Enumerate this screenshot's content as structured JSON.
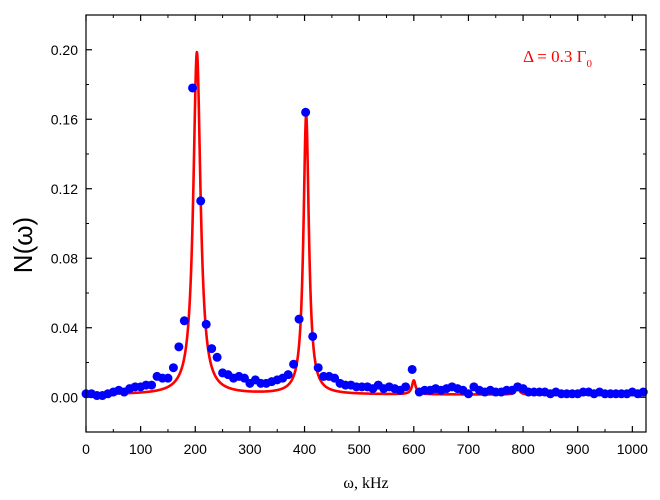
{
  "chart_data": {
    "type": "scatter",
    "xlabel": "ω, kHz",
    "ylabel": "N(ω)",
    "xlim": [
      0,
      1025
    ],
    "ylim": [
      -0.02,
      0.22
    ],
    "x_ticks": [
      0,
      100,
      200,
      300,
      400,
      500,
      600,
      700,
      800,
      900,
      1000
    ],
    "y_ticks": [
      0.0,
      0.04,
      0.08,
      0.12,
      0.16,
      0.2
    ],
    "y_tick_labels": [
      "0.00",
      "0.04",
      "0.08",
      "0.12",
      "0.16",
      "0.20"
    ],
    "grid": false,
    "annotation": {
      "text": "Δ = 0.3 Γ",
      "subscript": "0",
      "color": "#ff0000",
      "x": 800,
      "y": 0.193
    },
    "series": [
      {
        "type": "scatter",
        "color": "#0000ff",
        "points": [
          [
            0,
            0.002
          ],
          [
            10,
            0.002
          ],
          [
            20,
            0.001
          ],
          [
            30,
            0.001
          ],
          [
            40,
            0.002
          ],
          [
            50,
            0.003
          ],
          [
            60,
            0.004
          ],
          [
            70,
            0.003
          ],
          [
            80,
            0.005
          ],
          [
            90,
            0.006
          ],
          [
            100,
            0.006
          ],
          [
            110,
            0.007
          ],
          [
            120,
            0.007
          ],
          [
            130,
            0.012
          ],
          [
            140,
            0.011
          ],
          [
            150,
            0.011
          ],
          [
            160,
            0.017
          ],
          [
            170,
            0.029
          ],
          [
            180,
            0.044
          ],
          [
            195,
            0.178
          ],
          [
            210,
            0.113
          ],
          [
            220,
            0.042
          ],
          [
            230,
            0.028
          ],
          [
            240,
            0.023
          ],
          [
            250,
            0.014
          ],
          [
            260,
            0.013
          ],
          [
            270,
            0.011
          ],
          [
            280,
            0.012
          ],
          [
            290,
            0.011
          ],
          [
            300,
            0.008
          ],
          [
            310,
            0.01
          ],
          [
            320,
            0.008
          ],
          [
            330,
            0.008
          ],
          [
            340,
            0.009
          ],
          [
            350,
            0.01
          ],
          [
            360,
            0.011
          ],
          [
            370,
            0.013
          ],
          [
            380,
            0.019
          ],
          [
            390,
            0.045
          ],
          [
            402,
            0.164
          ],
          [
            415,
            0.035
          ],
          [
            425,
            0.017
          ],
          [
            435,
            0.012
          ],
          [
            445,
            0.012
          ],
          [
            455,
            0.011
          ],
          [
            465,
            0.008
          ],
          [
            475,
            0.007
          ],
          [
            485,
            0.007
          ],
          [
            495,
            0.006
          ],
          [
            505,
            0.006
          ],
          [
            515,
            0.006
          ],
          [
            525,
            0.005
          ],
          [
            535,
            0.007
          ],
          [
            545,
            0.005
          ],
          [
            555,
            0.006
          ],
          [
            565,
            0.005
          ],
          [
            575,
            0.004
          ],
          [
            585,
            0.006
          ],
          [
            597,
            0.016
          ],
          [
            610,
            0.003
          ],
          [
            620,
            0.004
          ],
          [
            630,
            0.004
          ],
          [
            640,
            0.005
          ],
          [
            650,
            0.004
          ],
          [
            660,
            0.005
          ],
          [
            670,
            0.006
          ],
          [
            680,
            0.005
          ],
          [
            690,
            0.004
          ],
          [
            700,
            0.002
          ],
          [
            710,
            0.006
          ],
          [
            720,
            0.004
          ],
          [
            730,
            0.003
          ],
          [
            740,
            0.004
          ],
          [
            750,
            0.003
          ],
          [
            760,
            0.003
          ],
          [
            770,
            0.004
          ],
          [
            780,
            0.004
          ],
          [
            790,
            0.006
          ],
          [
            800,
            0.005
          ],
          [
            810,
            0.003
          ],
          [
            820,
            0.003
          ],
          [
            830,
            0.003
          ],
          [
            840,
            0.003
          ],
          [
            850,
            0.002
          ],
          [
            860,
            0.003
          ],
          [
            870,
            0.002
          ],
          [
            880,
            0.002
          ],
          [
            890,
            0.002
          ],
          [
            900,
            0.002
          ],
          [
            910,
            0.003
          ],
          [
            920,
            0.003
          ],
          [
            930,
            0.002
          ],
          [
            940,
            0.003
          ],
          [
            950,
            0.002
          ],
          [
            960,
            0.002
          ],
          [
            970,
            0.002
          ],
          [
            980,
            0.002
          ],
          [
            990,
            0.002
          ],
          [
            1000,
            0.003
          ],
          [
            1010,
            0.002
          ],
          [
            1020,
            0.003
          ]
        ]
      },
      {
        "type": "line",
        "color": "#ff0000",
        "baseline": 0.0015,
        "peaks": [
          {
            "center": 203,
            "amplitude": 0.197,
            "half_width": 8
          },
          {
            "center": 403,
            "amplitude": 0.161,
            "half_width": 6
          },
          {
            "center": 600,
            "amplitude": 0.008,
            "half_width": 4
          },
          {
            "center": 790,
            "amplitude": 0.004,
            "half_width": 4
          }
        ]
      }
    ]
  }
}
